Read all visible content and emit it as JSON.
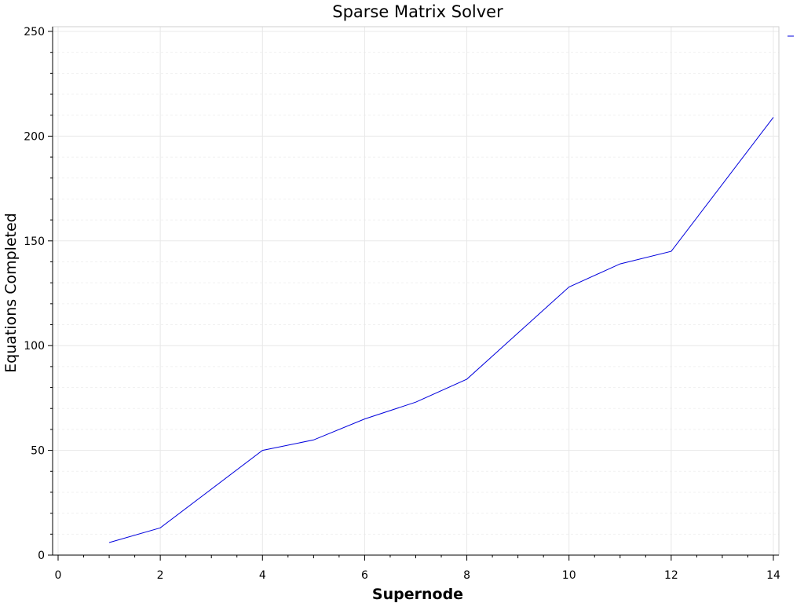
{
  "chart_data": {
    "type": "line",
    "title": "Sparse Matrix Solver",
    "xlabel": "Supernode",
    "ylabel": "Equations Completed",
    "xlim": [
      0,
      14
    ],
    "ylim": [
      0,
      250
    ],
    "x_ticks": [
      0,
      2,
      4,
      6,
      8,
      10,
      12,
      14
    ],
    "y_ticks": [
      0,
      50,
      100,
      150,
      200,
      250
    ],
    "grid": true,
    "legend": "top-right",
    "series": [
      {
        "color": "#0000dd",
        "x": [
          1,
          2,
          4,
          5,
          6,
          7,
          8,
          10,
          11,
          12,
          14
        ],
        "values": [
          6,
          13,
          50,
          55,
          65,
          73,
          84,
          128,
          139,
          145,
          209
        ]
      }
    ],
    "reference_lines": [
      {
        "y": 0,
        "color": "#0000aa",
        "style": "dash-dot"
      }
    ]
  }
}
